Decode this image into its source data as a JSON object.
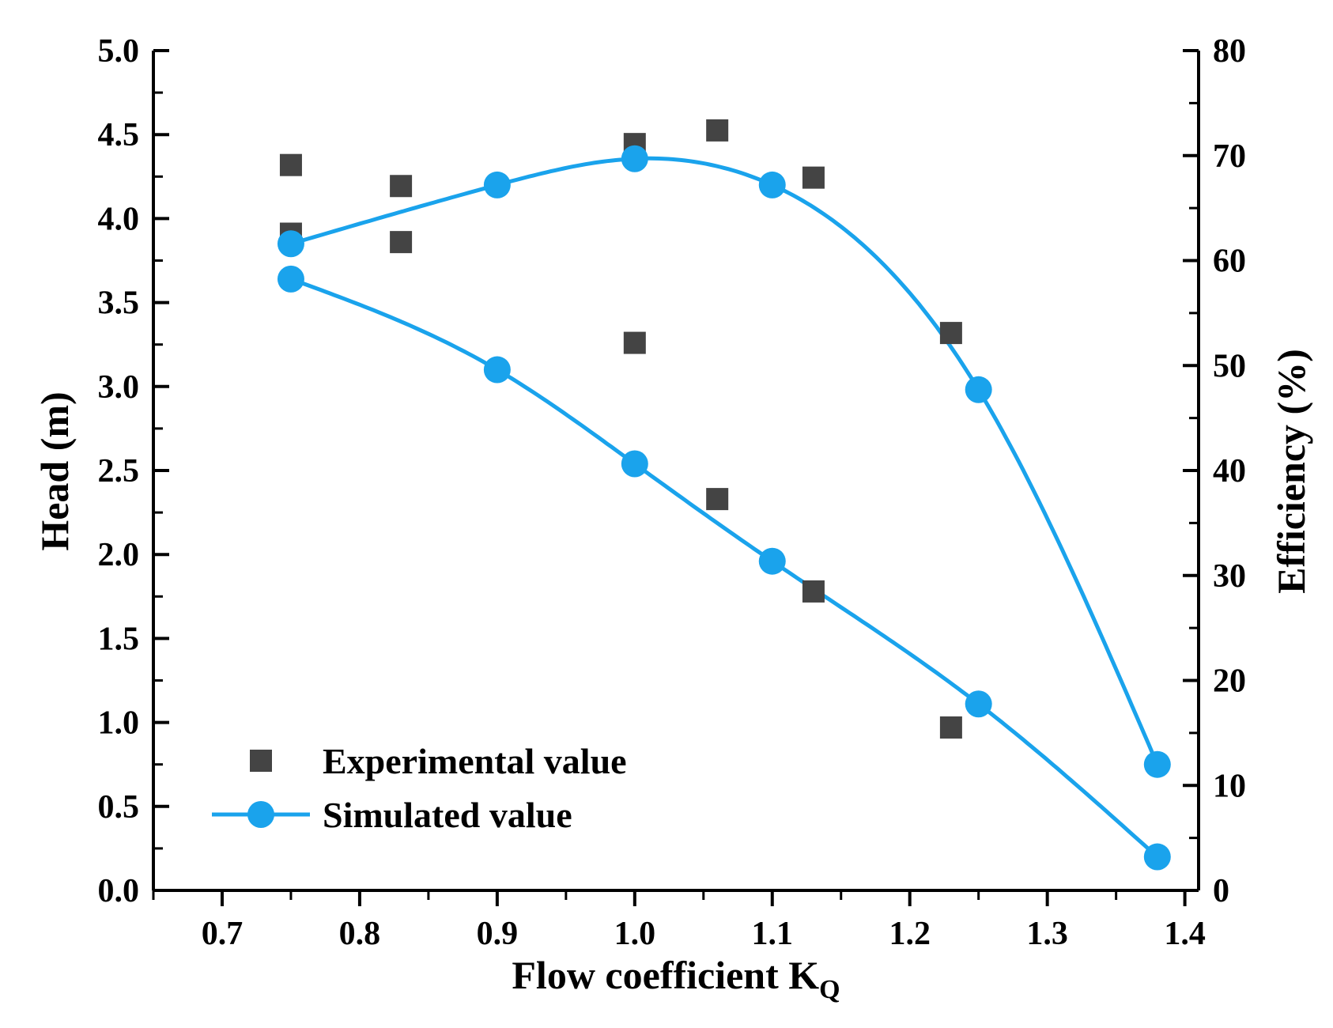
{
  "chart_data": {
    "type": "scatter",
    "title": "",
    "xlabel": "Flow coefficient K",
    "xlabel_subscript": "Q",
    "ylabel_left": "Head (m)",
    "ylabel_right": "Efficiency (%)",
    "xlim": [
      0.65,
      1.41
    ],
    "ylim_left": [
      0,
      5
    ],
    "ylim_right": [
      0,
      80
    ],
    "x_ticks": [
      "0.7",
      "0.8",
      "0.9",
      "1.0",
      "1.1",
      "1.2",
      "1.3",
      "1.4"
    ],
    "y_left_ticks": [
      "0.0",
      "0.5",
      "1.0",
      "1.5",
      "2.0",
      "2.5",
      "3.0",
      "3.5",
      "4.0",
      "4.5",
      "5.0"
    ],
    "y_right_ticks": [
      "0",
      "10",
      "20",
      "30",
      "40",
      "50",
      "60",
      "70",
      "80"
    ],
    "grid": false,
    "legend_position": "bottom-left",
    "series": [
      {
        "name": "Experimental value",
        "kind": "head",
        "axis": "left",
        "marker": "square",
        "color": "#444444",
        "x": [
          0.75,
          0.83,
          1.0,
          1.06,
          1.13,
          1.23
        ],
        "y": [
          3.91,
          3.86,
          3.26,
          2.33,
          1.78,
          0.97
        ]
      },
      {
        "name": "Experimental value",
        "kind": "efficiency",
        "axis": "right",
        "marker": "square",
        "color": "#444444",
        "x": [
          0.75,
          0.83,
          1.0,
          1.06,
          1.13,
          1.23
        ],
        "y": [
          69.1,
          67.1,
          71.1,
          72.4,
          67.9,
          53.1
        ]
      },
      {
        "name": "Simulated value",
        "kind": "head",
        "axis": "left",
        "marker": "circle",
        "color": "#1aa3ec",
        "x": [
          0.75,
          0.9,
          1.0,
          1.1,
          1.25,
          1.38
        ],
        "y": [
          3.64,
          3.1,
          2.54,
          1.96,
          1.11,
          0.2
        ]
      },
      {
        "name": "Simulated value",
        "kind": "efficiency",
        "axis": "right",
        "marker": "circle",
        "color": "#1aa3ec",
        "x": [
          0.75,
          0.9,
          1.0,
          1.1,
          1.25,
          1.38
        ],
        "y": [
          61.6,
          67.2,
          69.7,
          67.2,
          47.7,
          12
        ]
      }
    ],
    "legend": [
      {
        "label": "Experimental value",
        "marker": "square",
        "color": "#444444"
      },
      {
        "label": "Simulated value",
        "marker": "circle",
        "color": "#1aa3ec"
      }
    ]
  }
}
